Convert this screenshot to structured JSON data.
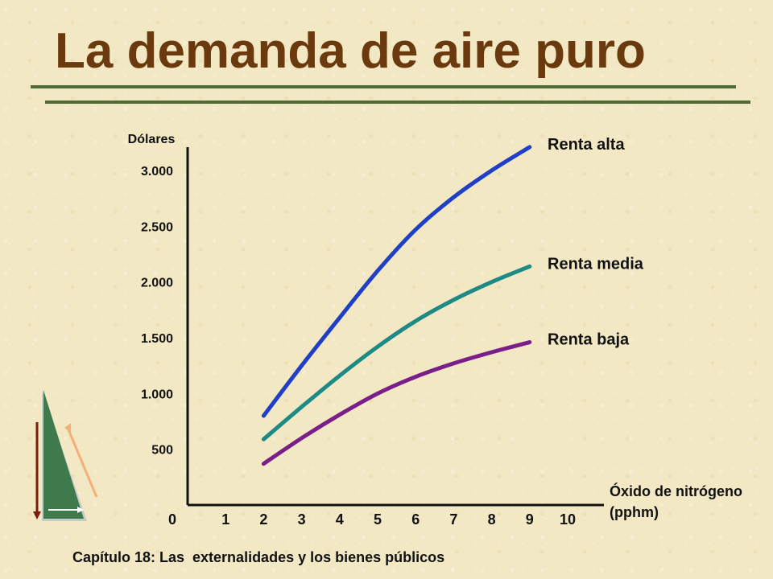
{
  "title": "La demanda de aire puro",
  "footer": "Capítulo 18: Las  externalidades y los bienes públicos",
  "colors": {
    "title": "#6a3a0e",
    "rule": "#4f6b35",
    "high": "#1f3fc7",
    "medium": "#1d8a86",
    "low": "#7a1f8a"
  },
  "chart_data": {
    "type": "line",
    "ylabel": "Dólares",
    "xlabel_lines": [
      "Óxido de nitrógeno",
      "(pphm)"
    ],
    "xlim": [
      0,
      10
    ],
    "ylim": [
      0,
      3000
    ],
    "x_ticks": [
      "0",
      "1",
      "2",
      "3",
      "4",
      "5",
      "6",
      "7",
      "8",
      "9",
      "10"
    ],
    "y_ticks": [
      {
        "value": 500,
        "label": "500"
      },
      {
        "value": 1000,
        "label": "1.000"
      },
      {
        "value": 1500,
        "label": "1.500"
      },
      {
        "value": 2000,
        "label": "2.000"
      },
      {
        "value": 2500,
        "label": "2.500"
      },
      {
        "value": 3000,
        "label": "3.000"
      }
    ],
    "series": [
      {
        "name": "Renta alta",
        "color": "#1f3fc7",
        "x": [
          2,
          3,
          4,
          5,
          6,
          7,
          8,
          9
        ],
        "y": [
          800,
          1250,
          1680,
          2100,
          2470,
          2760,
          3000,
          3210
        ]
      },
      {
        "name": "Renta media",
        "color": "#1d8a86",
        "x": [
          2,
          3,
          4,
          5,
          6,
          7,
          8,
          9
        ],
        "y": [
          590,
          880,
          1160,
          1420,
          1650,
          1840,
          2000,
          2140
        ]
      },
      {
        "name": "Renta baja",
        "color": "#7a1f8a",
        "x": [
          2,
          3,
          4,
          5,
          6,
          7,
          8,
          9
        ],
        "y": [
          370,
          600,
          810,
          1000,
          1150,
          1270,
          1370,
          1460
        ]
      }
    ]
  }
}
